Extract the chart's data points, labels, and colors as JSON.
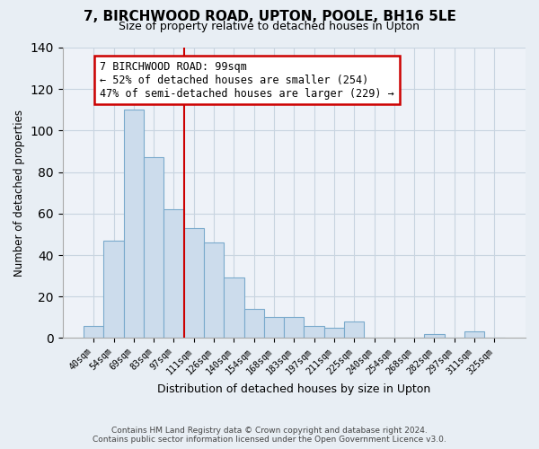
{
  "title": "7, BIRCHWOOD ROAD, UPTON, POOLE, BH16 5LE",
  "subtitle": "Size of property relative to detached houses in Upton",
  "xlabel": "Distribution of detached houses by size in Upton",
  "ylabel": "Number of detached properties",
  "bar_labels": [
    "40sqm",
    "54sqm",
    "69sqm",
    "83sqm",
    "97sqm",
    "111sqm",
    "126sqm",
    "140sqm",
    "154sqm",
    "168sqm",
    "183sqm",
    "197sqm",
    "211sqm",
    "225sqm",
    "240sqm",
    "254sqm",
    "268sqm",
    "282sqm",
    "297sqm",
    "311sqm",
    "325sqm"
  ],
  "bar_values": [
    6,
    47,
    110,
    87,
    62,
    53,
    46,
    29,
    14,
    10,
    10,
    6,
    5,
    8,
    0,
    0,
    0,
    2,
    0,
    3,
    0
  ],
  "bar_color": "#ccdcec",
  "bar_edge_color": "#7aaacc",
  "vline_x_index": 5,
  "vline_color": "#cc0000",
  "annotation_text": "7 BIRCHWOOD ROAD: 99sqm\n← 52% of detached houses are smaller (254)\n47% of semi-detached houses are larger (229) →",
  "annotation_box_color": "#ffffff",
  "annotation_box_edge_color": "#cc0000",
  "ylim": [
    0,
    140
  ],
  "yticks": [
    0,
    20,
    40,
    60,
    80,
    100,
    120,
    140
  ],
  "footnote": "Contains HM Land Registry data © Crown copyright and database right 2024.\nContains public sector information licensed under the Open Government Licence v3.0.",
  "background_color": "#e8eef4",
  "plot_background_color": "#eef2f8",
  "grid_color": "#c8d4e0"
}
